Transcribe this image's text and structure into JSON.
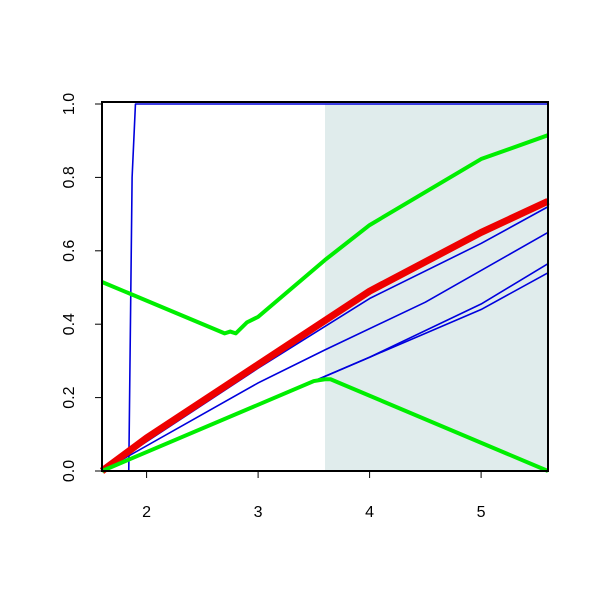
{
  "chart_data": {
    "type": "line",
    "xlim": [
      1.6,
      5.6
    ],
    "ylim": [
      0,
      1
    ],
    "xticks": [
      2,
      3,
      4,
      5
    ],
    "yticks": [
      {
        "value": 0,
        "label": "0.0"
      },
      0.2,
      0.4,
      0.6,
      0.8,
      {
        "value": 1,
        "label": "1.0"
      }
    ],
    "shaded_span": {
      "x": [
        3.6,
        5.6
      ],
      "color": "#e0ecec"
    },
    "series": [
      {
        "color": "#0000dd",
        "linewidth": 1.6,
        "x": [
          1.84,
          1.87,
          1.9,
          5.6
        ],
        "values": [
          0,
          0.8,
          1,
          1
        ]
      },
      {
        "color": "#0000dd",
        "linewidth": 1.6,
        "x": [
          1.6,
          3,
          3.5,
          4,
          5,
          5.6
        ],
        "values": [
          0,
          0.18,
          0.245,
          0.31,
          0.44,
          0.54
        ]
      },
      {
        "color": "#0000dd",
        "linewidth": 1.6,
        "x": [
          1.6,
          3,
          3.5,
          4,
          5,
          5.6
        ],
        "values": [
          0,
          0.18,
          0.245,
          0.31,
          0.455,
          0.565
        ]
      },
      {
        "color": "#0000dd",
        "linewidth": 1.6,
        "x": [
          1.6,
          3,
          3.6,
          4.5,
          5.6
        ],
        "values": [
          0,
          0.24,
          0.33,
          0.46,
          0.65
        ]
      },
      {
        "color": "#0000dd",
        "linewidth": 1.6,
        "x": [
          1.6,
          3,
          4,
          5,
          5.6
        ],
        "values": [
          0,
          0.28,
          0.47,
          0.62,
          0.72
        ]
      },
      {
        "color": "#ee0000",
        "linewidth": 7,
        "x": [
          1.6,
          2,
          3,
          4,
          5,
          5.6
        ],
        "values": [
          0,
          0.09,
          0.29,
          0.49,
          0.65,
          0.735
        ]
      },
      {
        "color": "#00ee00",
        "linewidth": 4,
        "x": [
          1.6,
          2.7,
          2.75,
          2.8,
          2.9,
          3,
          3.6,
          4,
          5,
          5.6
        ],
        "values": [
          0.515,
          0.375,
          0.38,
          0.375,
          0.405,
          0.42,
          0.575,
          0.67,
          0.85,
          0.915
        ]
      },
      {
        "color": "#00ee00",
        "linewidth": 4,
        "x": [
          1.6,
          3.5,
          3.6,
          3.65,
          5.6
        ],
        "values": [
          0,
          0.245,
          0.25,
          0.25,
          0
        ]
      }
    ]
  }
}
